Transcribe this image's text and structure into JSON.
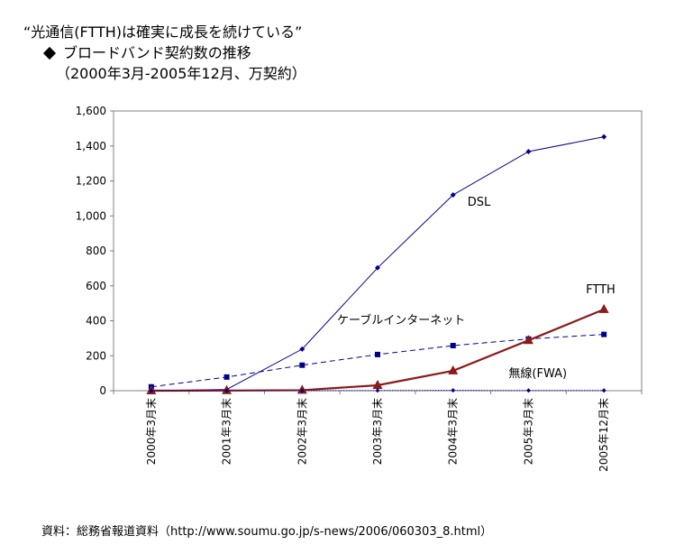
{
  "titles": {
    "line1": "“光通信(FTTH)は確実に成長を続けている”",
    "line2": "ブロードバンド契約数の推移",
    "line3": "（2000年3月-2005年12月、万契約）"
  },
  "source": "資料：総務省報道資料（http://www.soumu.go.jp/s-news/2006/060303_8.html）",
  "colors": {
    "dsl": "#00008B",
    "cable": "#00008B",
    "ftth": "#8B1A1A",
    "fwa": "#00008B"
  },
  "chart_data": {
    "type": "line",
    "categories": [
      "2000年3月末",
      "2001年3月末",
      "2002年3月末",
      "2003年3月末",
      "2004年3月末",
      "2005年3月末",
      "2005年12月末"
    ],
    "ylim": [
      0,
      1600
    ],
    "yticks": [
      0,
      200,
      400,
      600,
      800,
      1000,
      1200,
      1400,
      1600
    ],
    "ytick_labels": [
      "0",
      "200",
      "400",
      "600",
      "800",
      "1,000",
      "1,200",
      "1,400",
      "1,600"
    ],
    "grid": false,
    "series": [
      {
        "key": "dsl",
        "name": "DSL",
        "values": [
          0,
          7,
          238,
          703,
          1120,
          1368,
          1452
        ]
      },
      {
        "key": "cable",
        "name": "ケーブルインターネット",
        "values": [
          22,
          78,
          146,
          207,
          258,
          296,
          322
        ]
      },
      {
        "key": "ftth",
        "name": "FTTH",
        "values": [
          0,
          1,
          3,
          31,
          114,
          288,
          465
        ]
      },
      {
        "key": "fwa",
        "name": "無線(FWA)",
        "values": [
          0,
          0,
          0,
          1,
          2,
          1,
          1
        ]
      }
    ]
  }
}
